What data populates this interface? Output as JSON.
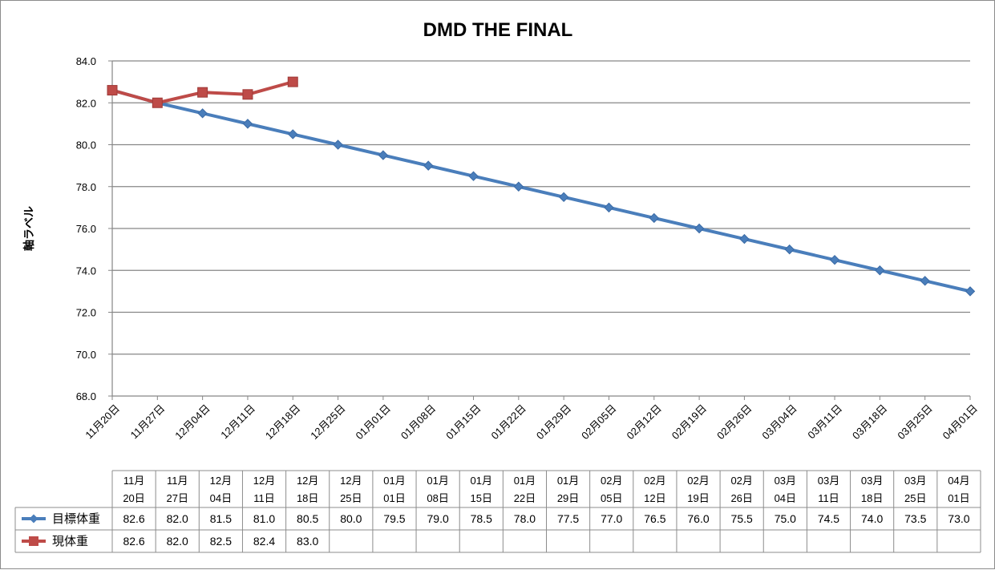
{
  "chart_data": {
    "type": "line",
    "title": "DMD THE FINAL",
    "xlabel": "",
    "ylabel": "軸ラベル",
    "ylim": [
      68.0,
      84.0
    ],
    "y_ticks": [
      "68.0",
      "70.0",
      "72.0",
      "74.0",
      "76.0",
      "78.0",
      "80.0",
      "82.0",
      "84.0"
    ],
    "grid": true,
    "legend": "data-table",
    "categories": [
      "11月20日",
      "11月27日",
      "12月04日",
      "12月11日",
      "12月18日",
      "12月25日",
      "01月01日",
      "01月08日",
      "01月15日",
      "01月22日",
      "01月29日",
      "02月05日",
      "02月12日",
      "02月19日",
      "02月26日",
      "03月04日",
      "03月11日",
      "03月18日",
      "03月25日",
      "04月01日"
    ],
    "table_headers": [
      [
        "11月",
        "20日"
      ],
      [
        "11月",
        "27日"
      ],
      [
        "12月",
        "04日"
      ],
      [
        "12月",
        "11日"
      ],
      [
        "12月",
        "18日"
      ],
      [
        "12月",
        "25日"
      ],
      [
        "01月",
        "01日"
      ],
      [
        "01月",
        "08日"
      ],
      [
        "01月",
        "15日"
      ],
      [
        "01月",
        "22日"
      ],
      [
        "01月",
        "29日"
      ],
      [
        "02月",
        "05日"
      ],
      [
        "02月",
        "12日"
      ],
      [
        "02月",
        "19日"
      ],
      [
        "02月",
        "26日"
      ],
      [
        "03月",
        "04日"
      ],
      [
        "03月",
        "11日"
      ],
      [
        "03月",
        "18日"
      ],
      [
        "03月",
        "25日"
      ],
      [
        "04月",
        "01日"
      ]
    ],
    "series": [
      {
        "name": "目標体重",
        "color": "#4a7ebb",
        "marker": "diamond",
        "values": [
          82.6,
          82.0,
          81.5,
          81.0,
          80.5,
          80.0,
          79.5,
          79.0,
          78.5,
          78.0,
          77.5,
          77.0,
          76.5,
          76.0,
          75.5,
          75.0,
          74.5,
          74.0,
          73.5,
          73.0
        ],
        "labels": [
          "82.6",
          "82.0",
          "81.5",
          "81.0",
          "80.5",
          "80.0",
          "79.5",
          "79.0",
          "78.5",
          "78.0",
          "77.5",
          "77.0",
          "76.5",
          "76.0",
          "75.5",
          "75.0",
          "74.5",
          "74.0",
          "73.5",
          "73.0"
        ]
      },
      {
        "name": "現体重",
        "color": "#be4b48",
        "marker": "square",
        "values": [
          82.6,
          82.0,
          82.5,
          82.4,
          83.0,
          null,
          null,
          null,
          null,
          null,
          null,
          null,
          null,
          null,
          null,
          null,
          null,
          null,
          null,
          null
        ],
        "labels": [
          "82.6",
          "82.0",
          "82.5",
          "82.4",
          "83.0",
          "",
          "",
          "",
          "",
          "",
          "",
          "",
          "",
          "",
          "",
          "",
          "",
          "",
          "",
          ""
        ]
      }
    ]
  }
}
